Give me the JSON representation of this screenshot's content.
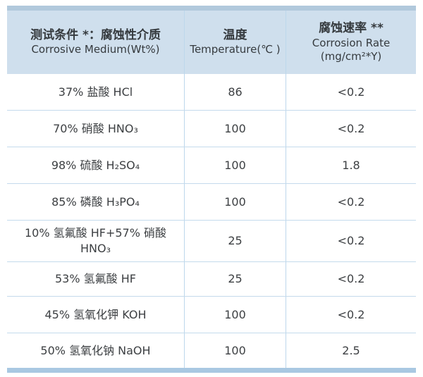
{
  "table": {
    "title_semantic": "corrosion-resistance-test-table",
    "header": {
      "medium_zh": "测试条件 *：腐蚀性介质",
      "medium_en": "Corrosive Medium(Wt%)",
      "temperature_zh": "温度",
      "temperature_en": "Temperature(℃ )",
      "rate_zh": "腐蚀速率 **",
      "rate_en": "Corrosion Rate",
      "rate_unit": "(mg/cm²*Y)"
    },
    "rows": [
      {
        "medium": "37% 盐酸 HCl",
        "temperature": "86",
        "rate": "<0.2"
      },
      {
        "medium": "70% 硝酸 HNO₃",
        "temperature": "100",
        "rate": "<0.2"
      },
      {
        "medium": "98% 硫酸 H₂SO₄",
        "temperature": "100",
        "rate": "1.8"
      },
      {
        "medium": "85% 磷酸 H₃PO₄",
        "temperature": "100",
        "rate": "<0.2"
      },
      {
        "medium": "10% 氢氟酸 HF+57% 硝酸\nHNO₃",
        "temperature": "25",
        "rate": "<0.2"
      },
      {
        "medium": "53% 氢氟酸 HF",
        "temperature": "25",
        "rate": "<0.2"
      },
      {
        "medium": "45% 氢氧化钾 KOH",
        "temperature": "100",
        "rate": "<0.2"
      },
      {
        "medium": "50% 氢氧化钠 NaOH",
        "temperature": "100",
        "rate": "2.5"
      }
    ],
    "colors": {
      "top_accent_bar": "#b1c9dc",
      "bottom_accent_bar": "#a9c8e2",
      "header_background": "#cfdfed",
      "vertical_divider": "#bdd7ec",
      "horizontal_divider": "#c4daec",
      "text": "#3d4043",
      "page_background": "#ffffff"
    }
  }
}
